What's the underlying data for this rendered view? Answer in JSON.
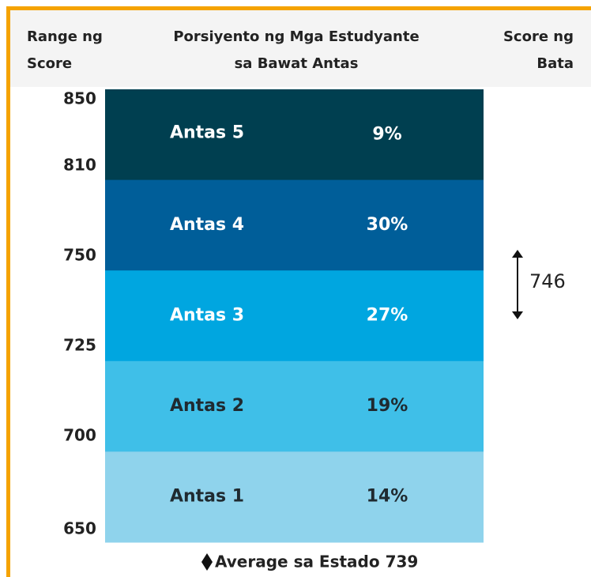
{
  "header": {
    "columns": [
      {
        "lines": [
          "Range ng",
          "Score"
        ]
      },
      {
        "lines": [
          "Porsiyento ng Mga Estudyante",
          "sa Bawat Antas"
        ]
      },
      {
        "lines": [
          "Score ng",
          "Bata"
        ]
      }
    ]
  },
  "scores": [
    "850",
    "810",
    "750",
    "725",
    "700",
    "650"
  ],
  "levels": [
    {
      "name": "Antas 5",
      "percent": "9%"
    },
    {
      "name": "Antas 4",
      "percent": "30%"
    },
    {
      "name": "Antas 3",
      "percent": "27%"
    },
    {
      "name": "Antas 2",
      "percent": "19%"
    },
    {
      "name": "Antas 1",
      "percent": "14%"
    }
  ],
  "child_score": "746",
  "legend": "Average sa Estado 739"
}
